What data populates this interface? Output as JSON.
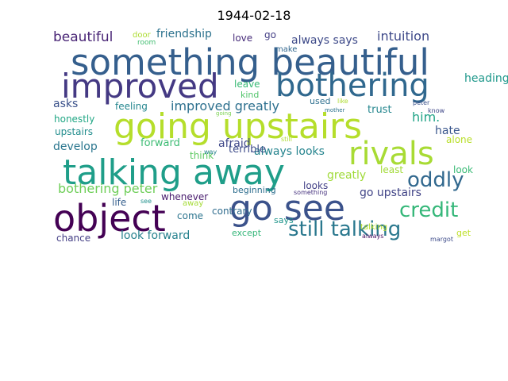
{
  "title": "1944-02-18",
  "words": [
    {
      "text": "something beautiful",
      "color": "#355f8d"
    },
    {
      "text": "improved",
      "color": "#443983"
    },
    {
      "text": "bothering",
      "color": "#30688e"
    },
    {
      "text": "going upstairs",
      "color": "#b5de2b"
    },
    {
      "text": "rivals",
      "color": "#a8db34"
    },
    {
      "text": "talking away",
      "color": "#1f9e89"
    },
    {
      "text": "object",
      "color": "#440154"
    },
    {
      "text": "go see",
      "color": "#3b528b"
    },
    {
      "text": "oddly",
      "color": "#31688e"
    },
    {
      "text": "credit",
      "color": "#35b779"
    },
    {
      "text": "still talking",
      "color": "#2a788e"
    },
    {
      "text": "beautiful",
      "color": "#482475"
    },
    {
      "text": "friendship",
      "color": "#2c728e"
    },
    {
      "text": "intuition",
      "color": "#3e4989"
    },
    {
      "text": "always says",
      "color": "#3e4a89"
    },
    {
      "text": "improved greatly",
      "color": "#2d708e"
    },
    {
      "text": "bothering peter",
      "color": "#6ece58"
    },
    {
      "text": "go upstairs",
      "color": "#414487"
    },
    {
      "text": "look forward",
      "color": "#26828e"
    },
    {
      "text": "him.",
      "color": "#20a386"
    },
    {
      "text": "hate",
      "color": "#39568c"
    },
    {
      "text": "asks",
      "color": "#3b528b"
    },
    {
      "text": "feeling",
      "color": "#24868e"
    },
    {
      "text": "always looks",
      "color": "#25848e"
    },
    {
      "text": "greatly",
      "color": "#a0da39"
    },
    {
      "text": "develop",
      "color": "#2a768e"
    },
    {
      "text": "forward",
      "color": "#3dbc74"
    },
    {
      "text": "heading",
      "color": "#1f988b"
    },
    {
      "text": "alone",
      "color": "#b8de29"
    },
    {
      "text": "trust",
      "color": "#24868e"
    },
    {
      "text": "honestly",
      "color": "#22a785"
    },
    {
      "text": "upstairs",
      "color": "#228d8d"
    },
    {
      "text": "leave",
      "color": "#3aba76"
    },
    {
      "text": "kind",
      "color": "#50c46a"
    },
    {
      "text": "used",
      "color": "#2e6f8e"
    },
    {
      "text": "love",
      "color": "#472c7a"
    },
    {
      "text": "go",
      "color": "#433e85"
    },
    {
      "text": "door",
      "color": "#addc30"
    },
    {
      "text": "room",
      "color": "#42be71"
    },
    {
      "text": "make",
      "color": "#31678e"
    },
    {
      "text": "afraid",
      "color": "#3f4889"
    },
    {
      "text": "terrible",
      "color": "#3e4c8a"
    },
    {
      "text": "think",
      "color": "#5ec962"
    },
    {
      "text": "whenever",
      "color": "#481b6d"
    },
    {
      "text": "away",
      "color": "#a5db36"
    },
    {
      "text": "come",
      "color": "#2b748e"
    },
    {
      "text": "life",
      "color": "#355f8d"
    },
    {
      "text": "see",
      "color": "#21918c"
    },
    {
      "text": "beginning",
      "color": "#2e6e8e"
    },
    {
      "text": "something",
      "color": "#46327e"
    },
    {
      "text": "looks",
      "color": "#424086"
    },
    {
      "text": "least",
      "color": "#a2da37"
    },
    {
      "text": "look",
      "color": "#3aba76"
    },
    {
      "text": "contrary",
      "color": "#2f6c8e"
    },
    {
      "text": "says",
      "color": "#1f958b"
    },
    {
      "text": "except",
      "color": "#34b679"
    },
    {
      "text": "chance",
      "color": "#433e85"
    },
    {
      "text": "talking",
      "color": "#b5de2b"
    },
    {
      "text": "always",
      "color": "#471063"
    },
    {
      "text": "margot",
      "color": "#3e4c8a"
    },
    {
      "text": "get",
      "color": "#bddf26"
    },
    {
      "text": "still",
      "color": "#addc30"
    },
    {
      "text": "way",
      "color": "#26828e"
    },
    {
      "text": "going",
      "color": "#7ad151"
    },
    {
      "text": "mother",
      "color": "#2c738e"
    },
    {
      "text": "like",
      "color": "#addc30"
    },
    {
      "text": "peter",
      "color": "#3b528b"
    },
    {
      "text": "know",
      "color": "#3f4788"
    }
  ]
}
